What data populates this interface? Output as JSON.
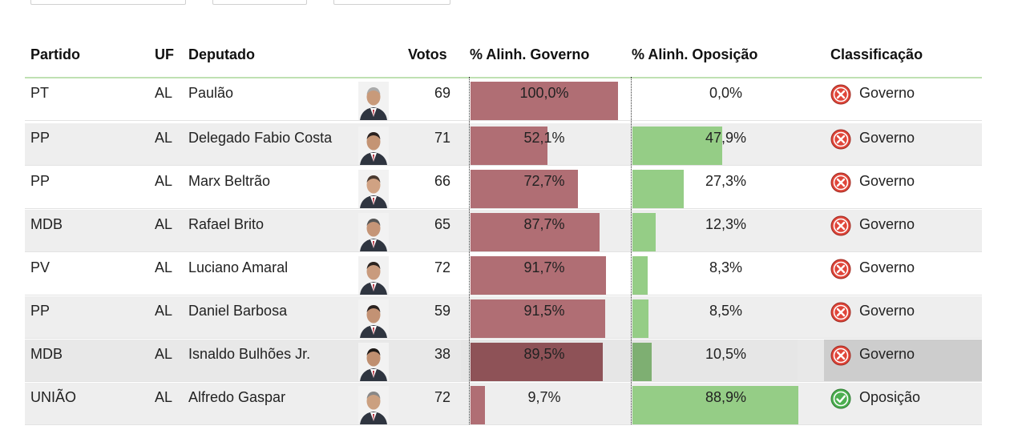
{
  "table": {
    "headers": {
      "partido": "Partido",
      "uf": "UF",
      "deputado": "Deputado",
      "votos": "Votos",
      "gov": "% Alinh. Governo",
      "op": "% Alinh. Oposição",
      "classificacao": "Classificação"
    },
    "rows": [
      {
        "partido": "PT",
        "uf": "AL",
        "deputado": "Paulão",
        "votos": "69",
        "gov_label": "100,0%",
        "op_label": "0,0%",
        "gov_value": 100.0,
        "op_value": 0.0,
        "classificacao": "Governo",
        "status": "governo"
      },
      {
        "partido": "PP",
        "uf": "AL",
        "deputado": "Delegado Fabio Costa",
        "votos": "71",
        "gov_label": "52,1%",
        "op_label": "47,9%",
        "gov_value": 52.1,
        "op_value": 47.9,
        "classificacao": "Governo",
        "status": "governo"
      },
      {
        "partido": "PP",
        "uf": "AL",
        "deputado": "Marx Beltrão",
        "votos": "66",
        "gov_label": "72,7%",
        "op_label": "27,3%",
        "gov_value": 72.7,
        "op_value": 27.3,
        "classificacao": "Governo",
        "status": "governo"
      },
      {
        "partido": "MDB",
        "uf": "AL",
        "deputado": "Rafael Brito",
        "votos": "65",
        "gov_label": "87,7%",
        "op_label": "12,3%",
        "gov_value": 87.7,
        "op_value": 12.3,
        "classificacao": "Governo",
        "status": "governo"
      },
      {
        "partido": "PV",
        "uf": "AL",
        "deputado": "Luciano Amaral",
        "votos": "72",
        "gov_label": "91,7%",
        "op_label": "8,3%",
        "gov_value": 91.7,
        "op_value": 8.3,
        "classificacao": "Governo",
        "status": "governo"
      },
      {
        "partido": "PP",
        "uf": "AL",
        "deputado": "Daniel Barbosa",
        "votos": "59",
        "gov_label": "91,5%",
        "op_label": "8,5%",
        "gov_value": 91.5,
        "op_value": 8.5,
        "classificacao": "Governo",
        "status": "governo"
      },
      {
        "partido": "MDB",
        "uf": "AL",
        "deputado": "Isnaldo Bulhões Jr.",
        "votos": "38",
        "gov_label": "89,5%",
        "op_label": "10,5%",
        "gov_value": 89.5,
        "op_value": 10.5,
        "classificacao": "Governo",
        "status": "governo",
        "hovered": true
      },
      {
        "partido": "UNIÃO",
        "uf": "AL",
        "deputado": "Alfredo Gaspar",
        "votos": "72",
        "gov_label": "9,7%",
        "op_label": "88,9%",
        "gov_value": 9.7,
        "op_value": 88.9,
        "classificacao": "Oposição",
        "status": "oposicao"
      }
    ]
  },
  "colors": {
    "gov_bar": "#b06e74",
    "gov_bar_hover": "#8e5257",
    "op_bar": "#95cd86",
    "op_bar_hover": "#7eaf72",
    "governo_icon": "#e0463a",
    "oposicao_icon": "#4caf50"
  },
  "icons": {
    "governo": "x-circle-icon",
    "oposicao": "check-circle-icon"
  }
}
